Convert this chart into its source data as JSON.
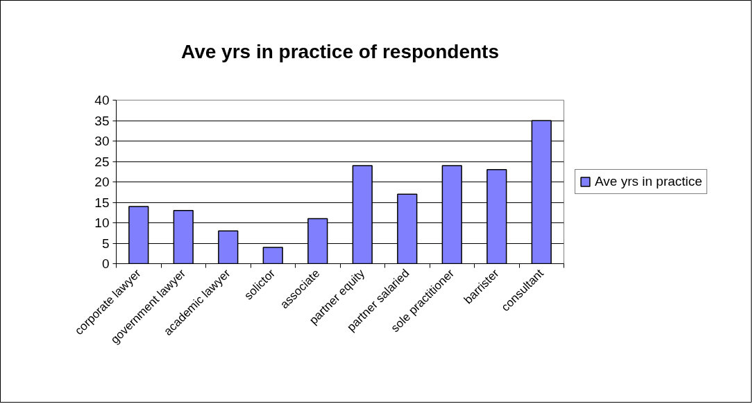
{
  "chart_data": {
    "type": "bar",
    "title": "Ave yrs in practice of respondents",
    "categories": [
      "corporate lawyer",
      "government lawyer",
      "academic lawyer",
      "solictor",
      "associate",
      "partner equity",
      "partner salaried",
      "sole practitioner",
      "barrister",
      "consultant"
    ],
    "series": [
      {
        "name": "Ave yrs in practice",
        "color": "#8080ff",
        "values": [
          14,
          13,
          8,
          4,
          11,
          24,
          17,
          24,
          23,
          35
        ]
      }
    ],
    "ylim": [
      0,
      40
    ],
    "yticks": [
      0,
      5,
      10,
      15,
      20,
      25,
      30,
      35,
      40
    ],
    "grid": "y",
    "legend": "right"
  }
}
